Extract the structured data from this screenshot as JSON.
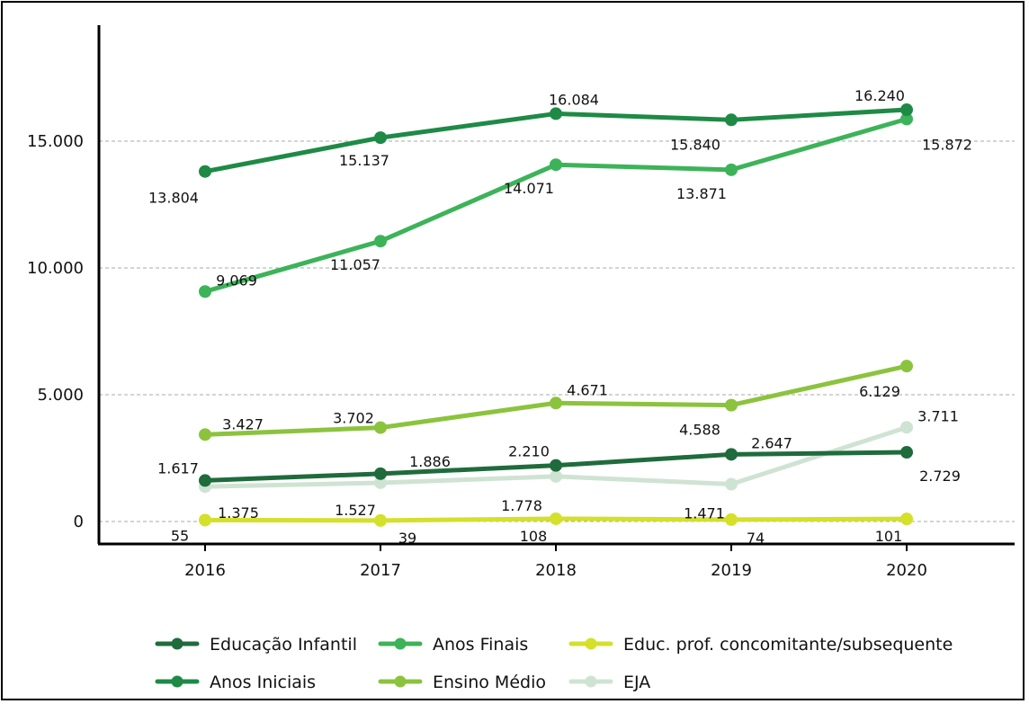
{
  "chart_data": {
    "type": "line",
    "title": "",
    "xlabel": "",
    "ylabel": "",
    "x": [
      "2016",
      "2017",
      "2018",
      "2019",
      "2020"
    ],
    "ylim": [
      0,
      18000
    ],
    "yticks": [
      0,
      5000,
      10000,
      15000
    ],
    "ytick_labels": [
      "0",
      "5.000",
      "10.000",
      "15.000"
    ],
    "grid": "horizontal dashed",
    "legend_position": "bottom",
    "series": [
      {
        "key": "educacao_infantil",
        "name": "Educação Infantil",
        "color": "#1f6b3c",
        "values": [
          1617,
          1886,
          2210,
          2647,
          2729
        ],
        "labels": [
          "1.617",
          "1.886",
          "2.210",
          "2.647",
          "2.729"
        ]
      },
      {
        "key": "anos_iniciais",
        "name": "Anos Iniciais",
        "color": "#1e8a46",
        "values": [
          13804,
          15137,
          16084,
          15840,
          16240
        ],
        "labels": [
          "13.804",
          "15.137",
          "16.084",
          "15.840",
          "16.240"
        ]
      },
      {
        "key": "anos_finais",
        "name": "Anos Finais",
        "color": "#3db359",
        "values": [
          9069,
          11057,
          14071,
          13871,
          15872
        ],
        "labels": [
          "9.069",
          "11.057",
          "14.071",
          "13.871",
          "15.872"
        ]
      },
      {
        "key": "ensino_medio",
        "name": "Ensino Médio",
        "color": "#8cc33e",
        "values": [
          3427,
          3702,
          4671,
          4588,
          6129
        ],
        "labels": [
          "3.427",
          "3.702",
          "4.671",
          "4.588",
          "6.129"
        ]
      },
      {
        "key": "educ_prof",
        "name": "Educ. prof. concomitante/subsequente",
        "color": "#d4e02a",
        "values": [
          55,
          39,
          108,
          74,
          101
        ],
        "labels": [
          "55",
          "39",
          "108",
          "74",
          "101"
        ]
      },
      {
        "key": "eja",
        "name": "EJA",
        "color": "#cfe3d3",
        "values": [
          1375,
          1527,
          1778,
          1471,
          3711
        ],
        "labels": [
          "1.375",
          "1.527",
          "1.778",
          "1.471",
          "3.711"
        ]
      }
    ]
  }
}
